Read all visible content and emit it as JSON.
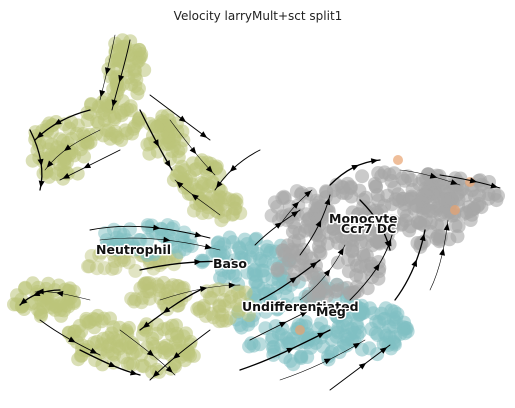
{
  "chart_data": {
    "type": "scatter",
    "title": "Velocity larryMult+sct split1",
    "xlabel": "",
    "ylabel": "",
    "axes_visible": false,
    "grid": false,
    "legend": "on data",
    "colors": {
      "Neutrophil": "#bcc47a",
      "Baso": "#7fbfc2",
      "Undifferentiated": "#7fbfc2",
      "Meg": "#d0a98a",
      "Monocyte": "#a7a7a7",
      "Ccr7_DC": "#e8a26f",
      "streamline": "#000000"
    },
    "clusters": [
      {
        "label": "Neutrophil",
        "x": 1.7,
        "y": 3.3
      },
      {
        "label": "Baso",
        "x": 3.6,
        "y": 2.9
      },
      {
        "label": "Undifferentiated",
        "x": 5.3,
        "y": 1.6
      },
      {
        "label": "Meg",
        "x": 5.9,
        "y": 1.5
      },
      {
        "label": "Monocyte",
        "x": 6.3,
        "y": 4.1
      },
      {
        "label": "Ccr7_DC",
        "x": 6.4,
        "y": 3.8
      }
    ]
  },
  "labels": {
    "neutrophil": "Neutrophil",
    "baso": "Baso",
    "undifferentiated": "Undifferentiated",
    "meg": "Meg",
    "monocyte": "Monocyte",
    "ccr7dc": "Ccr7 DC"
  }
}
